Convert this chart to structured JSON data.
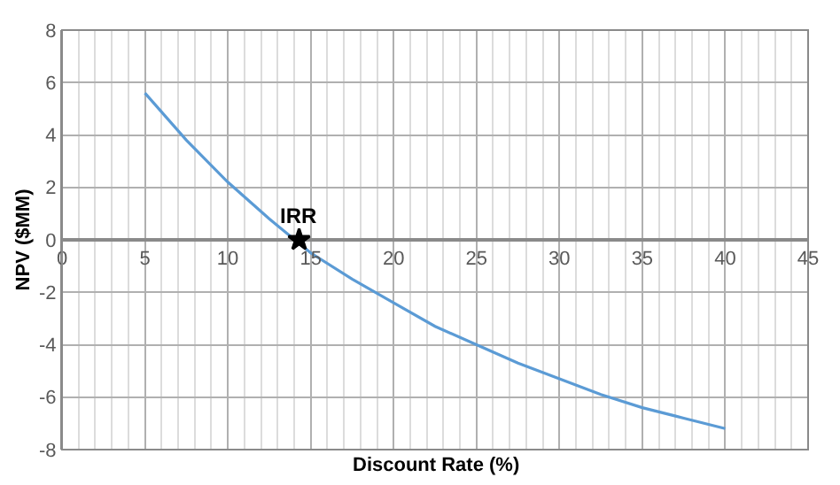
{
  "chart_data": {
    "type": "line",
    "xlabel": "Discount Rate (%)",
    "ylabel": "NPV ($MM)",
    "xlim": [
      0,
      45
    ],
    "xticks": [
      0,
      5,
      10,
      15,
      20,
      25,
      30,
      35,
      40,
      45
    ],
    "ylim": [
      -8,
      8
    ],
    "yticks": [
      -8,
      -6,
      -4,
      -2,
      0,
      2,
      4,
      6,
      8
    ],
    "grid": true,
    "series": [
      {
        "color": "#5b9bd5",
        "marker": "none",
        "x": [
          5,
          7.5,
          10,
          12.5,
          15,
          17.5,
          20,
          22.5,
          25,
          27.5,
          30,
          32.5,
          35,
          37.5,
          40
        ],
        "values": [
          5.6,
          3.8,
          2.2,
          0.8,
          -0.5,
          -1.5,
          -2.4,
          -3.3,
          -4.0,
          -4.7,
          -5.3,
          -5.9,
          -6.4,
          -6.8,
          -7.2
        ]
      },
      {
        "type": "scatter",
        "color": "#000000",
        "marker": "star",
        "x": [
          14.3
        ],
        "values": [
          0
        ]
      }
    ],
    "annotations": [
      {
        "text": "IRR",
        "x": 14.3,
        "y": 0
      }
    ]
  }
}
